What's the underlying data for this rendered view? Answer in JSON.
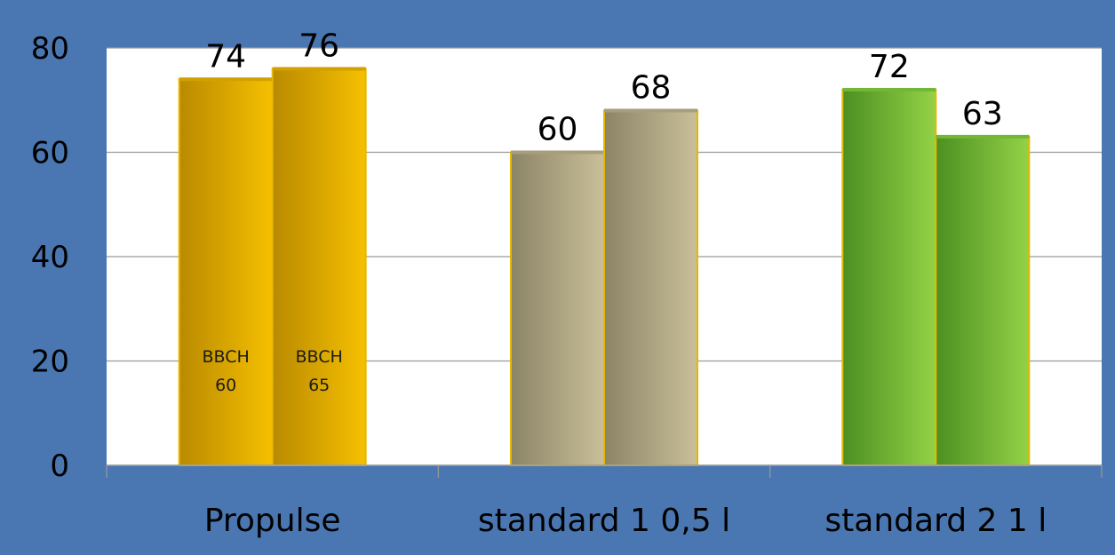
{
  "chart_data": {
    "type": "bar",
    "title": "",
    "xlabel": "",
    "ylabel": "",
    "ylim": [
      0,
      80
    ],
    "yticks": [
      0,
      20,
      40,
      60,
      80
    ],
    "categories": [
      "Propulse",
      "standard 1 0,5 l",
      "standard 2 1 l"
    ],
    "series": [
      {
        "values": [
          74,
          60,
          72
        ]
      },
      {
        "values": [
          76,
          68,
          63
        ]
      }
    ],
    "bar_notes": [
      {
        "category_index": 0,
        "series_index": 0,
        "lines": [
          "BBCH",
          "60"
        ]
      },
      {
        "category_index": 0,
        "series_index": 1,
        "lines": [
          "BBCH",
          "65"
        ]
      }
    ],
    "grid": true,
    "legend": "none",
    "colors": {
      "frame": "#4a77b1",
      "plot_bg": "#ffffff",
      "gridline": "#9a9a9a",
      "bar_outline": "#e7b800",
      "category_gradients": [
        [
          "#b98a00",
          "#f6c000"
        ],
        [
          "#8c8467",
          "#c9bf99"
        ],
        [
          "#4d8f22",
          "#93d246"
        ]
      ],
      "category_tops": [
        "#d2a000",
        "#a79e7e",
        "#72b736"
      ]
    }
  }
}
